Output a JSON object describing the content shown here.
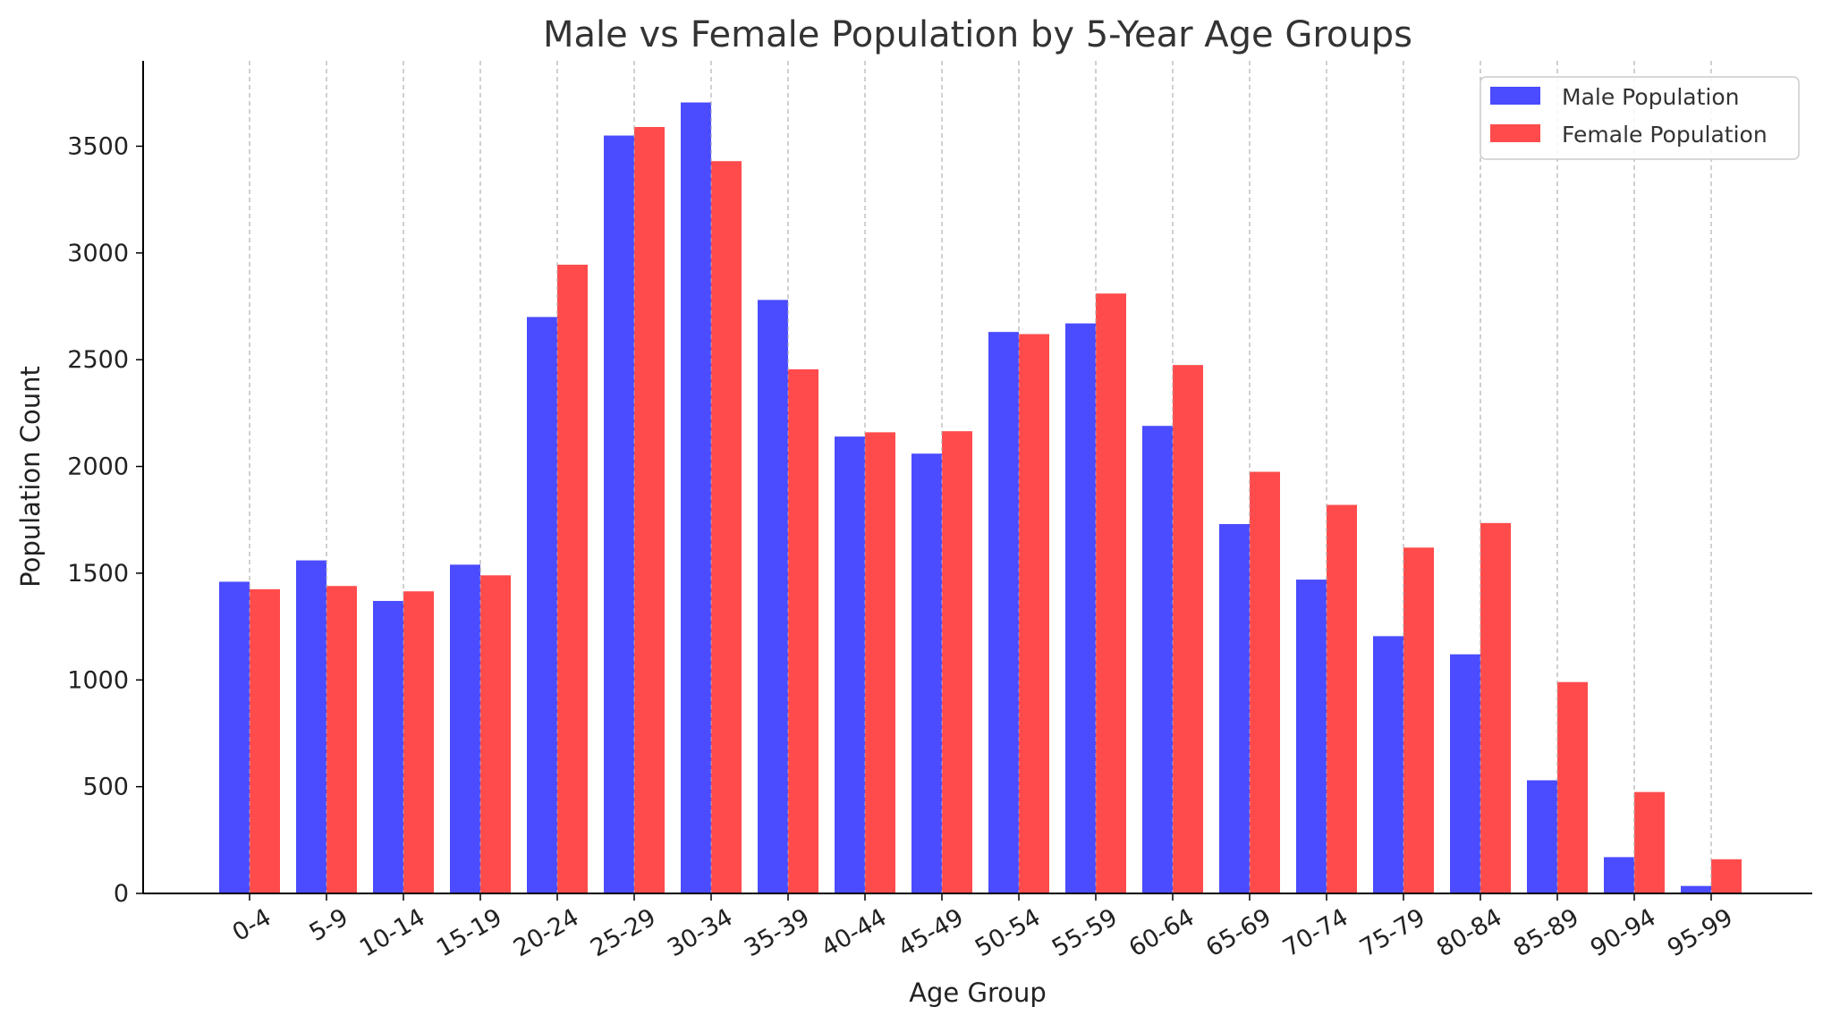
{
  "chart_data": {
    "type": "bar",
    "title": "Male vs Female Population by 5-Year Age Groups",
    "xlabel": "Age Group",
    "ylabel": "Population Count",
    "ylim": [
      0,
      3900
    ],
    "yticks": [
      0,
      500,
      1000,
      1500,
      2000,
      2500,
      3000,
      3500
    ],
    "grid": "vertical dashed",
    "legend_position": "top-right",
    "categories": [
      "0-4",
      "5-9",
      "10-14",
      "15-19",
      "20-24",
      "25-29",
      "30-34",
      "35-39",
      "40-44",
      "45-49",
      "50-54",
      "55-59",
      "60-64",
      "65-69",
      "70-74",
      "75-79",
      "80-84",
      "85-89",
      "90-94",
      "95-99"
    ],
    "series": [
      {
        "name": "Male Population",
        "color": "#4b4bff",
        "values": [
          1460,
          1560,
          1370,
          1540,
          2700,
          3550,
          3705,
          2780,
          2140,
          2060,
          2630,
          2670,
          2190,
          1730,
          1470,
          1205,
          1120,
          530,
          170,
          35
        ]
      },
      {
        "name": "Female Population",
        "color": "#ff4b4b",
        "values": [
          1425,
          1440,
          1415,
          1490,
          2945,
          3590,
          3430,
          2455,
          2160,
          2165,
          2620,
          2810,
          2475,
          1975,
          1820,
          1620,
          1735,
          990,
          475,
          160
        ]
      }
    ]
  }
}
